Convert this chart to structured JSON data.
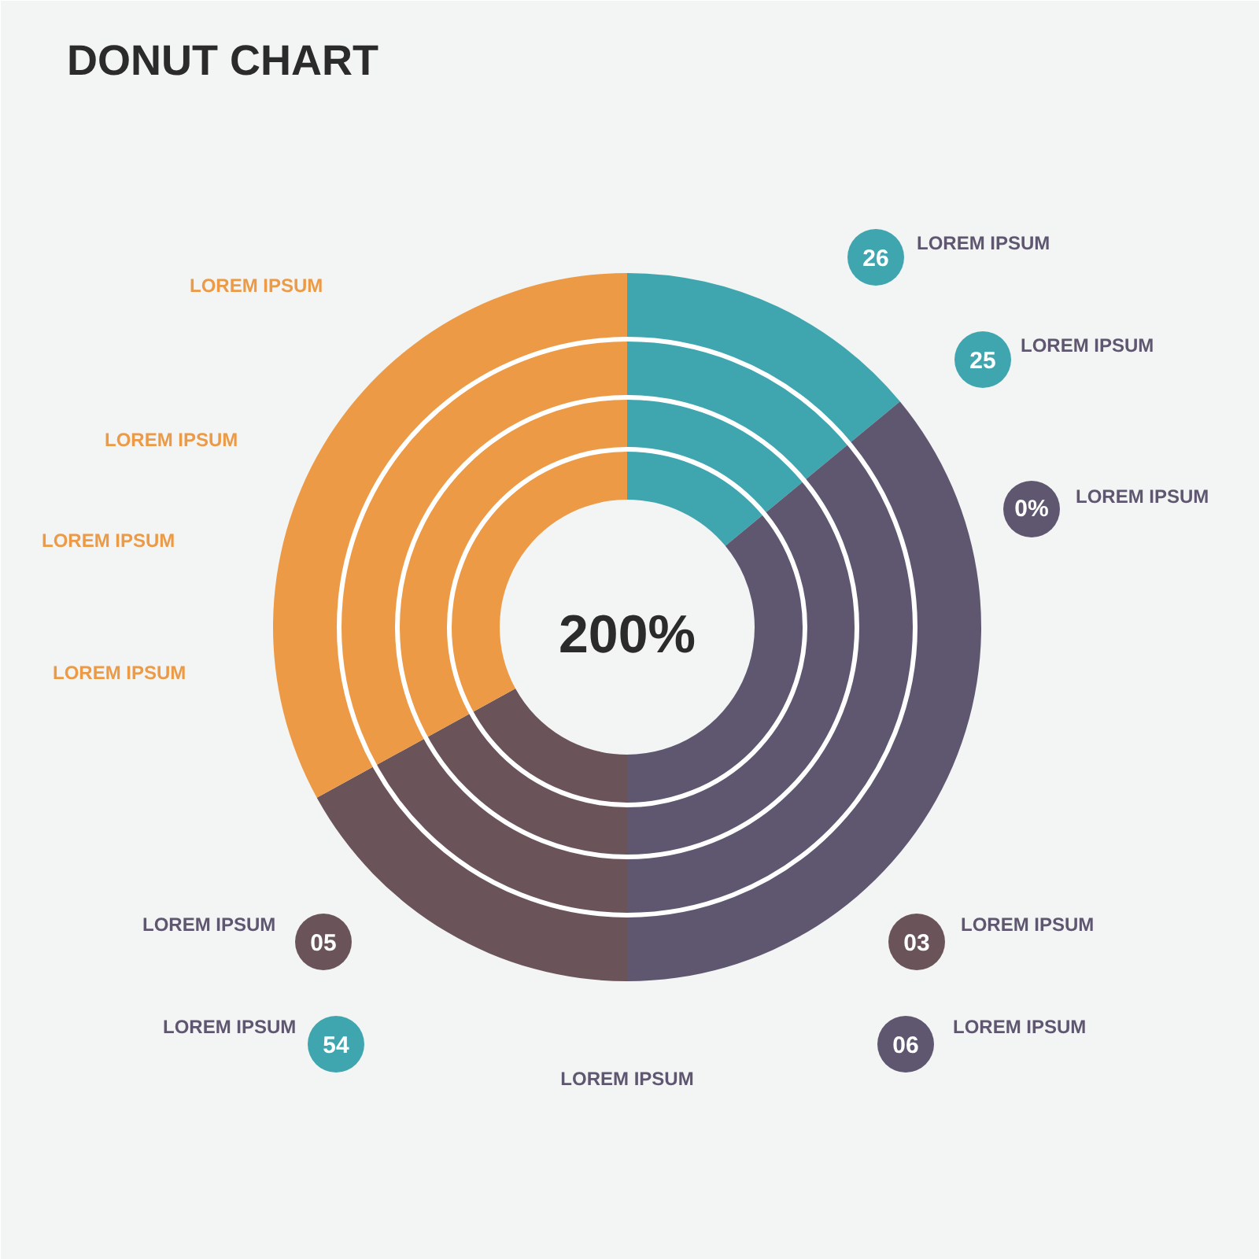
{
  "chart_data": {
    "type": "donut",
    "title": "DONUT CHART",
    "categories": [
      null,
      null,
      null,
      null
    ],
    "values": [
      14,
      36,
      17,
      33
    ],
    "colors": [
      "#3fa6b0",
      "#5f5670",
      "#6b5459",
      "#ec9a45"
    ],
    "annotations": [
      "200%",
      "26",
      "LOREM IPSUM",
      "25",
      "LOREM IPSUM",
      "0%",
      "LOREM IPSUM",
      "03",
      "LOREM IPSUM",
      "06",
      "LOREM IPSUM",
      "LOREM IPSUM",
      "54",
      "LOREM IPSUM",
      "05",
      "LOREM IPSUM",
      "LOREM IPSUM",
      "LOREM IPSUM",
      "LOREM IPSUM",
      "LOREM IPSUM"
    ]
  }
}
